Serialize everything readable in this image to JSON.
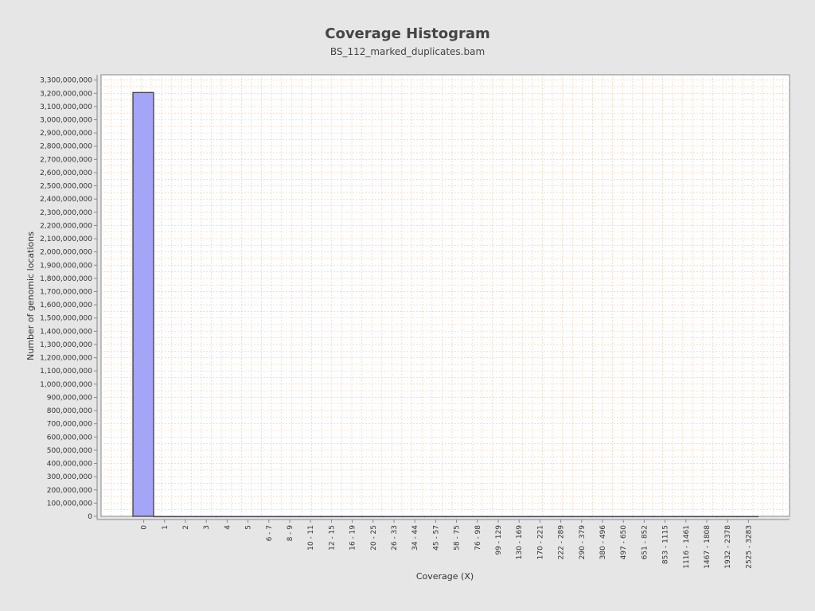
{
  "chart_data": {
    "type": "bar",
    "title": "Coverage Histogram",
    "subtitle": "BS_112_marked_duplicates.bam",
    "xlabel": "Coverage (X)",
    "ylabel": "Number of genomic locations",
    "categories": [
      "0",
      "1",
      "2",
      "3",
      "4",
      "5",
      "6 - 7",
      "8 - 9",
      "10 - 11",
      "12 - 15",
      "16 - 19",
      "20 - 25",
      "26 - 33",
      "34 - 44",
      "45 - 57",
      "58 - 75",
      "76 - 98",
      "99 - 129",
      "130 - 169",
      "170 - 221",
      "222 - 289",
      "290 - 379",
      "380 - 496",
      "497 - 650",
      "651 - 852",
      "853 - 1115",
      "1116 - 1461",
      "1467 - 1808",
      "1932 - 2378",
      "2525 - 3283"
    ],
    "values": [
      3206000000,
      0,
      0,
      0,
      0,
      0,
      0,
      0,
      0,
      0,
      0,
      0,
      0,
      0,
      0,
      0,
      0,
      0,
      0,
      0,
      0,
      0,
      0,
      0,
      0,
      0,
      0,
      0,
      0,
      0
    ],
    "ylim": [
      0,
      3340000000
    ],
    "yticks": [
      "0",
      "100,000,000",
      "200,000,000",
      "300,000,000",
      "400,000,000",
      "500,000,000",
      "600,000,000",
      "700,000,000",
      "800,000,000",
      "900,000,000",
      "1,000,000,000",
      "1,100,000,000",
      "1,200,000,000",
      "1,300,000,000",
      "1,400,000,000",
      "1,500,000,000",
      "1,600,000,000",
      "1,700,000,000",
      "1,800,000,000",
      "1,900,000,000",
      "2,000,000,000",
      "2,100,000,000",
      "2,200,000,000",
      "2,300,000,000",
      "2,400,000,000",
      "2,500,000,000",
      "2,600,000,000",
      "2,700,000,000",
      "2,800,000,000",
      "2,900,000,000",
      "3,000,000,000",
      "3,100,000,000",
      "3,200,000,000",
      "3,300,000,000"
    ],
    "grid": true,
    "legend": "none",
    "bar_color": "#a5a5f7",
    "grid_color": "#f2c9a8",
    "plot_background": "#ffffff",
    "page_background": "#e6e6e6"
  }
}
